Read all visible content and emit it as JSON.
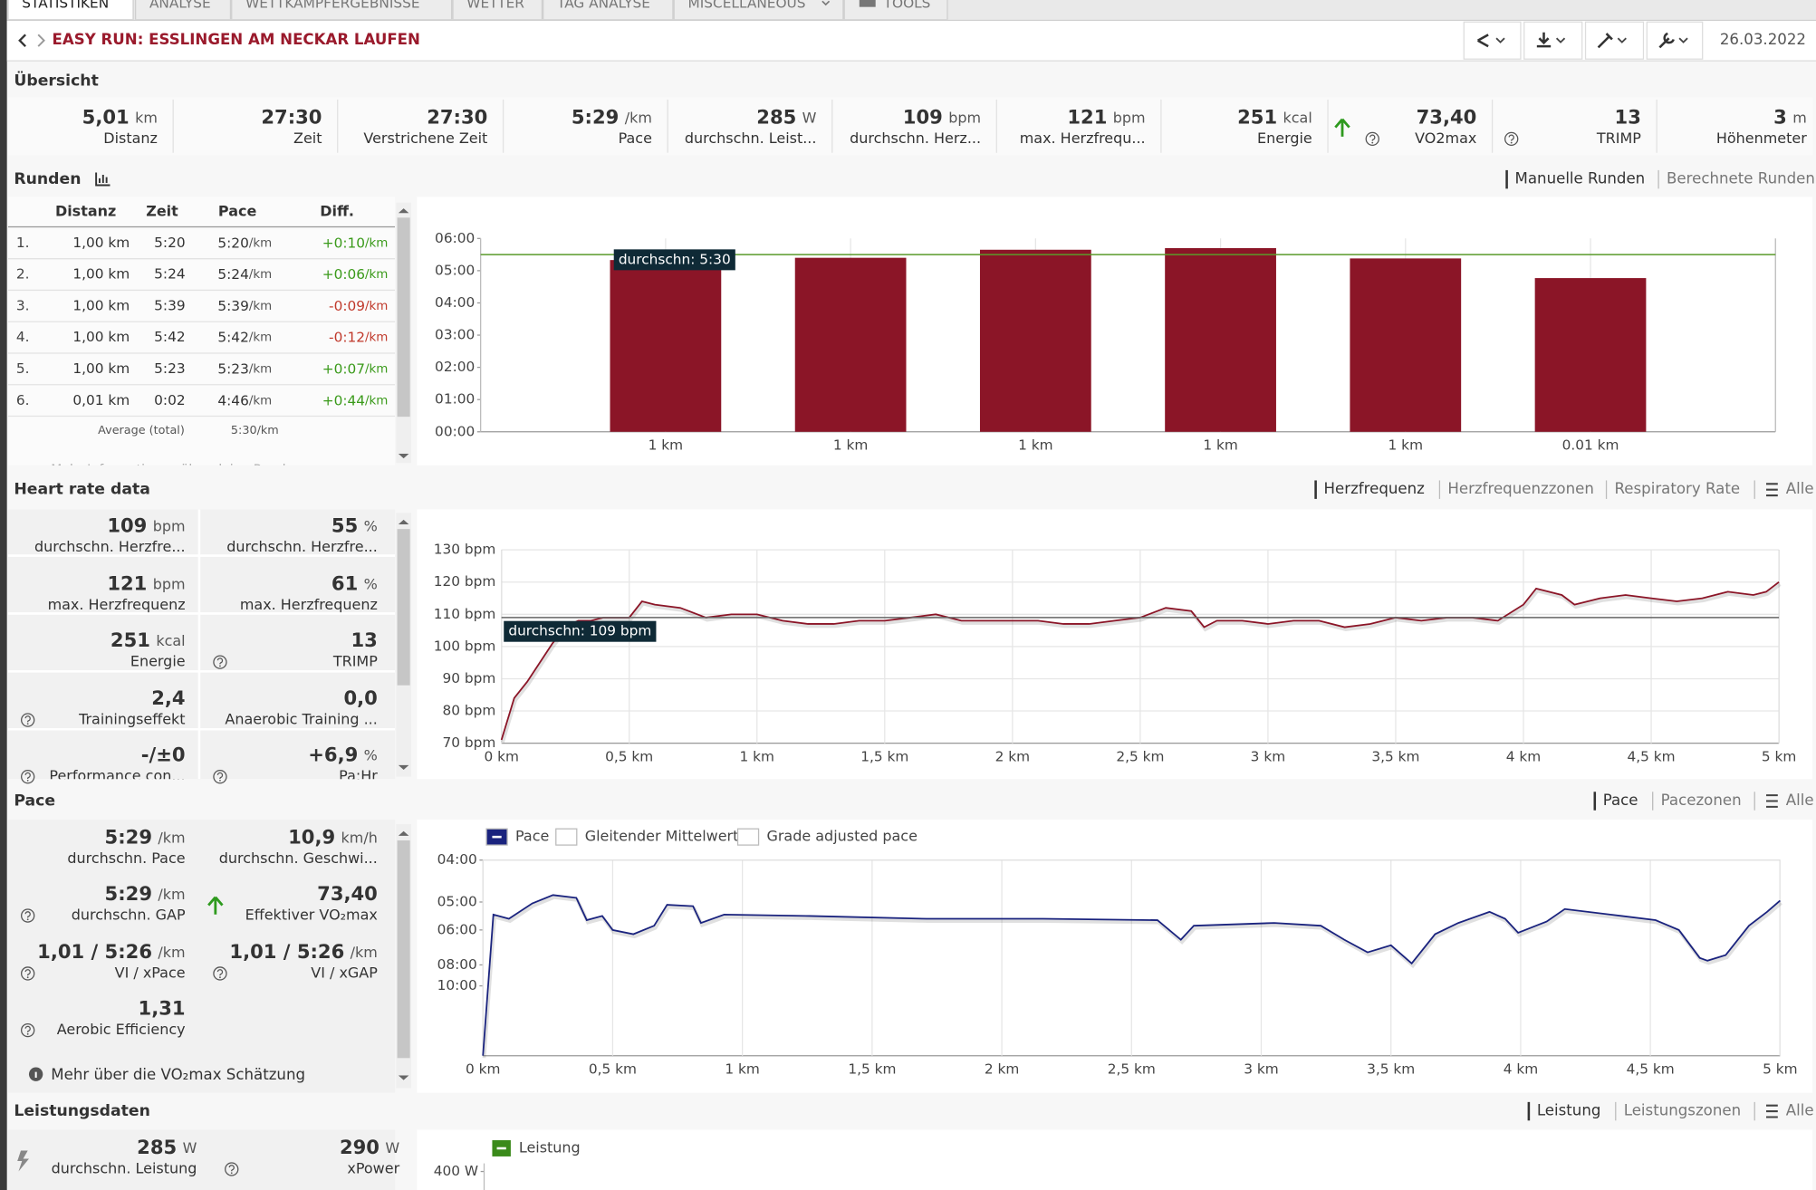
{
  "tabs": [
    "STATISTIKEN",
    "ANALYSE",
    "WETTKAMPFERGEBNISSE",
    "WETTER",
    "TAG ANALYSE",
    "MISCELLANEOUS",
    "TOOLS"
  ],
  "header": {
    "title": "EASY RUN: ESSLINGEN AM NECKAR LAUFEN",
    "date": "26.03.2022"
  },
  "overview": {
    "title": "Übersicht",
    "items": [
      {
        "value": "5,01",
        "unit": "km",
        "label": "Distanz"
      },
      {
        "value": "27:30",
        "label": "Zeit"
      },
      {
        "value": "27:30",
        "label": "Verstrichene Zeit"
      },
      {
        "value": "5:29",
        "unit": "/km",
        "label": "Pace"
      },
      {
        "value": "285",
        "unit": "W",
        "label": "durchschn. Leist..."
      },
      {
        "value": "109",
        "unit": "bpm",
        "label": "durchschn. Herz..."
      },
      {
        "value": "121",
        "unit": "bpm",
        "label": "max. Herzfrequ..."
      },
      {
        "value": "251",
        "unit": "kcal",
        "label": "Energie"
      },
      {
        "value": "73,40",
        "label": "VO2max",
        "help": true,
        "up": true
      },
      {
        "value": "13",
        "label": "TRIMP",
        "help": true
      },
      {
        "value": "3",
        "unit": "m",
        "label": "Höhenmeter"
      }
    ]
  },
  "laps": {
    "title": "Runden",
    "views": [
      "Manuelle Runden",
      "Berechnete Runden"
    ],
    "columns": [
      "Distanz",
      "Zeit",
      "Pace",
      "Diff."
    ],
    "unit": "/km",
    "rows": [
      {
        "n": "1.",
        "distance": "1,00 km",
        "time": "5:20",
        "pace": "5:20",
        "diff": "+0:10"
      },
      {
        "n": "2.",
        "distance": "1,00 km",
        "time": "5:24",
        "pace": "5:24",
        "diff": "+0:06"
      },
      {
        "n": "3.",
        "distance": "1,00 km",
        "time": "5:39",
        "pace": "5:39",
        "diff": "-0:09"
      },
      {
        "n": "4.",
        "distance": "1,00 km",
        "time": "5:42",
        "pace": "5:42",
        "diff": "-0:12"
      },
      {
        "n": "5.",
        "distance": "1,00 km",
        "time": "5:23",
        "pace": "5:23",
        "diff": "+0:07"
      },
      {
        "n": "6.",
        "distance": "0,01 km",
        "time": "0:02",
        "pace": "4:46",
        "diff": "+0:44"
      }
    ],
    "average": {
      "label": "Average (total)",
      "pace": "5:30/km"
    },
    "more": "Mehr Informationen über deine Runden",
    "chart": {
      "type": "bar",
      "categories": [
        "1 km",
        "1 km",
        "1 km",
        "1 km",
        "1 km",
        "0.01 km"
      ],
      "values": [
        5.33,
        5.4,
        5.65,
        5.7,
        5.38,
        4.77
      ],
      "color": "#8b1527",
      "ylim": [
        0,
        6
      ],
      "yticks": [
        {
          "value": 0,
          "label": "00:00"
        },
        {
          "value": 1,
          "label": "01:00"
        },
        {
          "value": 2,
          "label": "02:00"
        },
        {
          "value": 3,
          "label": "03:00"
        },
        {
          "value": 4,
          "label": "04:00"
        },
        {
          "value": 5,
          "label": "05:00"
        },
        {
          "value": 6,
          "label": "06:00"
        }
      ],
      "average": {
        "value": 5.5,
        "label": "durchschn: 5:30",
        "color": "#5a9a2a"
      }
    }
  },
  "heart_rate": {
    "title": "Heart rate data",
    "views": [
      "Herzfrequenz",
      "Herzfrequenzzonen",
      "Respiratory Rate",
      "Alle"
    ],
    "stats": [
      {
        "value": "109",
        "unit": "bpm",
        "label": "durchschn. Herzfre..."
      },
      {
        "value": "55",
        "unit": "%",
        "label": "durchschn. Herzfre..."
      },
      {
        "value": "121",
        "unit": "bpm",
        "label": "max. Herzfrequenz"
      },
      {
        "value": "61",
        "unit": "%",
        "label": "max. Herzfrequenz"
      },
      {
        "value": "251",
        "unit": "kcal",
        "label": "Energie"
      },
      {
        "value": "13",
        "label": "TRIMP",
        "help": true
      },
      {
        "value": "2,4",
        "label": "Trainingseffekt",
        "help": true
      },
      {
        "value": "0,0",
        "label": "Anaerobic Training ..."
      },
      {
        "value": "-/±0",
        "label": "Performance con...",
        "help": true
      },
      {
        "value": "+6,9",
        "unit": "%",
        "label": "Pa:Hr",
        "help": true
      }
    ],
    "chart": {
      "type": "line",
      "color": "#8b1527",
      "x": [
        0,
        0.05,
        0.1,
        0.15,
        0.2,
        0.25,
        0.3,
        0.35,
        0.4,
        0.45,
        0.5,
        0.55,
        0.6,
        0.7,
        0.8,
        0.9,
        1.0,
        1.1,
        1.2,
        1.3,
        1.4,
        1.5,
        1.6,
        1.7,
        1.8,
        1.9,
        2.0,
        2.1,
        2.2,
        2.3,
        2.4,
        2.5,
        2.6,
        2.7,
        2.75,
        2.8,
        2.9,
        3.0,
        3.1,
        3.2,
        3.3,
        3.4,
        3.5,
        3.6,
        3.7,
        3.8,
        3.9,
        4.0,
        4.05,
        4.15,
        4.2,
        4.3,
        4.4,
        4.5,
        4.6,
        4.7,
        4.8,
        4.9,
        4.95,
        5.0
      ],
      "values": [
        71,
        84,
        89,
        95,
        101,
        106,
        108,
        108,
        109,
        109,
        109,
        114,
        113,
        112,
        109,
        110,
        110,
        108,
        107,
        107,
        108,
        108,
        109,
        110,
        108,
        108,
        108,
        108,
        107,
        107,
        108,
        109,
        112,
        111,
        106,
        108,
        108,
        107,
        108,
        108,
        106,
        107,
        109,
        108,
        109,
        109,
        108,
        113,
        118,
        116,
        113,
        115,
        116,
        115,
        114,
        115,
        117,
        116,
        117,
        120
      ],
      "xlim": [
        0,
        5
      ],
      "xticks": [
        {
          "value": 0,
          "label": "0 km"
        },
        {
          "value": 0.5,
          "label": "0,5 km"
        },
        {
          "value": 1,
          "label": "1 km"
        },
        {
          "value": 1.5,
          "label": "1,5 km"
        },
        {
          "value": 2,
          "label": "2 km"
        },
        {
          "value": 2.5,
          "label": "2,5 km"
        },
        {
          "value": 3,
          "label": "3 km"
        },
        {
          "value": 3.5,
          "label": "3,5 km"
        },
        {
          "value": 4,
          "label": "4 km"
        },
        {
          "value": 4.5,
          "label": "4,5 km"
        },
        {
          "value": 5,
          "label": "5 km"
        }
      ],
      "ylim": [
        70,
        130
      ],
      "yticks": [
        {
          "value": 70,
          "label": "70 bpm"
        },
        {
          "value": 80,
          "label": "80 bpm"
        },
        {
          "value": 90,
          "label": "90 bpm"
        },
        {
          "value": 100,
          "label": "100 bpm"
        },
        {
          "value": 110,
          "label": "110 bpm"
        },
        {
          "value": 120,
          "label": "120 bpm"
        },
        {
          "value": 130,
          "label": "130 bpm"
        }
      ],
      "average": {
        "value": 109,
        "label": "durchschn: 109 bpm",
        "color": "#666666"
      }
    }
  },
  "pace": {
    "title": "Pace",
    "views": [
      "Pace",
      "Pacezonen",
      "Alle"
    ],
    "stats": [
      {
        "value": "5:29",
        "unit": "/km",
        "label": "durchschn. Pace"
      },
      {
        "value": "10,9",
        "unit": "km/h",
        "label": "durchschn. Geschwi..."
      },
      {
        "value": "5:29",
        "unit": "/km",
        "label": "durchschn. GAP",
        "help": true
      },
      {
        "value": "73,40",
        "label": "Effektiver VO₂max",
        "up": true
      },
      {
        "value": "1,01 / 5:26",
        "unit": "/km",
        "label": "VI / xPace",
        "help": true
      },
      {
        "value": "1,01 / 5:26",
        "unit": "/km",
        "label": "VI / xGAP",
        "help": true
      },
      {
        "value": "1,31",
        "label": "Aerobic Efficiency",
        "help": true
      }
    ],
    "note": "Mehr über die VO₂max Schätzung",
    "chart": {
      "type": "line",
      "color": "#1a237e",
      "legend": [
        {
          "name": "Pace",
          "active": true
        },
        {
          "name": "Gleitender Mittelwert",
          "active": false
        },
        {
          "name": "Grade adjusted pace",
          "active": false
        }
      ],
      "x": [
        0,
        0.04,
        0.1,
        0.19,
        0.27,
        0.36,
        0.4,
        0.46,
        0.5,
        0.58,
        0.66,
        0.71,
        0.81,
        0.84,
        0.93,
        1.26,
        1.71,
        2.16,
        2.6,
        2.69,
        2.74,
        3.05,
        3.23,
        3.32,
        3.41,
        3.5,
        3.58,
        3.67,
        3.76,
        3.88,
        3.94,
        3.99,
        4.1,
        4.17,
        4.39,
        4.52,
        4.61,
        4.69,
        4.72,
        4.79,
        4.88,
        4.95,
        5.0
      ],
      "values": [
        1,
        11.1,
        10.8,
        11.9,
        12.5,
        12.3,
        10.7,
        11.0,
        10.0,
        9.7,
        10.3,
        11.8,
        11.7,
        10.5,
        11.1,
        11.0,
        10.8,
        10.8,
        10.7,
        9.3,
        10.3,
        10.5,
        10.3,
        9.3,
        8.4,
        8.9,
        7.6,
        9.7,
        10.5,
        11.3,
        10.8,
        9.8,
        10.6,
        11.5,
        11.0,
        10.7,
        10.0,
        8.0,
        7.8,
        8.2,
        10.3,
        11.3,
        12.1
      ],
      "xlim": [
        0,
        5
      ],
      "xticks": [
        {
          "value": 0,
          "label": "0 km"
        },
        {
          "value": 0.5,
          "label": "0,5 km"
        },
        {
          "value": 1,
          "label": "1 km"
        },
        {
          "value": 1.5,
          "label": "1,5 km"
        },
        {
          "value": 2,
          "label": "2 km"
        },
        {
          "value": 2.5,
          "label": "2,5 km"
        },
        {
          "value": 3,
          "label": "3 km"
        },
        {
          "value": 3.5,
          "label": "3,5 km"
        },
        {
          "value": 4,
          "label": "4 km"
        },
        {
          "value": 4.5,
          "label": "4,5 km"
        },
        {
          "value": 5,
          "label": "5 km"
        }
      ],
      "ylim": [
        1,
        15
      ],
      "yticks": [
        {
          "value": 15,
          "label": "04:00"
        },
        {
          "value": 12,
          "label": "05:00"
        },
        {
          "value": 10,
          "label": "06:00"
        },
        {
          "value": 7.5,
          "label": "08:00"
        },
        {
          "value": 6,
          "label": "10:00"
        }
      ]
    }
  },
  "power": {
    "title": "Leistungsdaten",
    "views": [
      "Leistung",
      "Leistungszonen",
      "Alle"
    ],
    "stats": [
      {
        "value": "285",
        "unit": "W",
        "label": "durchschn. Leistung"
      },
      {
        "value": "290",
        "unit": "W",
        "label": "xPower",
        "help": true
      }
    ],
    "chart": {
      "legend": [
        {
          "name": "Leistung",
          "color": "#3a8a1a"
        }
      ],
      "yticks": [
        {
          "value": 400,
          "label": "400 W"
        }
      ]
    }
  }
}
